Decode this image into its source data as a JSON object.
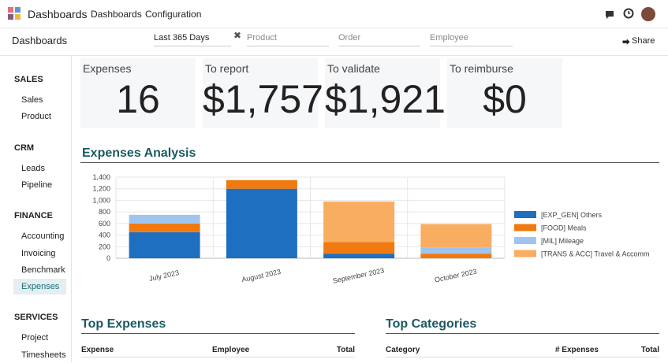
{
  "app": {
    "title": "Dashboards",
    "menu": [
      "Dashboards",
      "Configuration"
    ]
  },
  "control": {
    "breadcrumb": "Dashboards",
    "period": "Last 365 Days",
    "fields": [
      "Product",
      "Order",
      "Employee"
    ],
    "share": "Share"
  },
  "sidebar": [
    {
      "title": "SALES",
      "items": [
        "Sales",
        "Product"
      ]
    },
    {
      "title": "CRM",
      "items": [
        "Leads",
        "Pipeline"
      ]
    },
    {
      "title": "FINANCE",
      "items": [
        "Accounting",
        "Invoicing",
        "Benchmark",
        "Expenses"
      ]
    },
    {
      "title": "SERVICES",
      "items": [
        "Project",
        "Timesheets"
      ]
    }
  ],
  "kpis": [
    {
      "label": "Expenses",
      "value": "16"
    },
    {
      "label": "To report",
      "value": "$1,757"
    },
    {
      "label": "To validate",
      "value": "$1,921"
    },
    {
      "label": "To reimburse",
      "value": "$0"
    }
  ],
  "chart_data": {
    "type": "bar",
    "stacked": true,
    "title": "Expenses Analysis",
    "categories": [
      "July 2023",
      "August 2023",
      "September 2023",
      "October 2023"
    ],
    "series": [
      {
        "name": "[EXP_GEN] Others",
        "color": "#1f6fc0",
        "values": [
          450,
          1200,
          80,
          0
        ]
      },
      {
        "name": "[FOOD] Meals",
        "color": "#f07a10",
        "values": [
          150,
          150,
          200,
          80
        ]
      },
      {
        "name": "[MIL] Mileage",
        "color": "#a0c4ee",
        "values": [
          150,
          0,
          0,
          100
        ]
      },
      {
        "name": "[TRANS & ACC] Travel & Accomm",
        "color": "#f9ad61",
        "values": [
          0,
          0,
          700,
          410
        ]
      }
    ],
    "ylim": [
      0,
      1400
    ],
    "yticks": [
      0,
      200,
      400,
      600,
      800,
      {
        "value": 1000,
        "label": "1,000"
      },
      {
        "value": 1200,
        "label": "1,200"
      },
      {
        "value": 1400,
        "label": "1,400"
      }
    ],
    "grid": true,
    "legend": "right"
  },
  "tables": [
    {
      "title": "Top Expenses",
      "columns": [
        "Expense",
        "Employee",
        "Total"
      ]
    },
    {
      "title": "Top Categories",
      "columns": [
        "Category",
        "# Expenses",
        "Total"
      ]
    }
  ]
}
